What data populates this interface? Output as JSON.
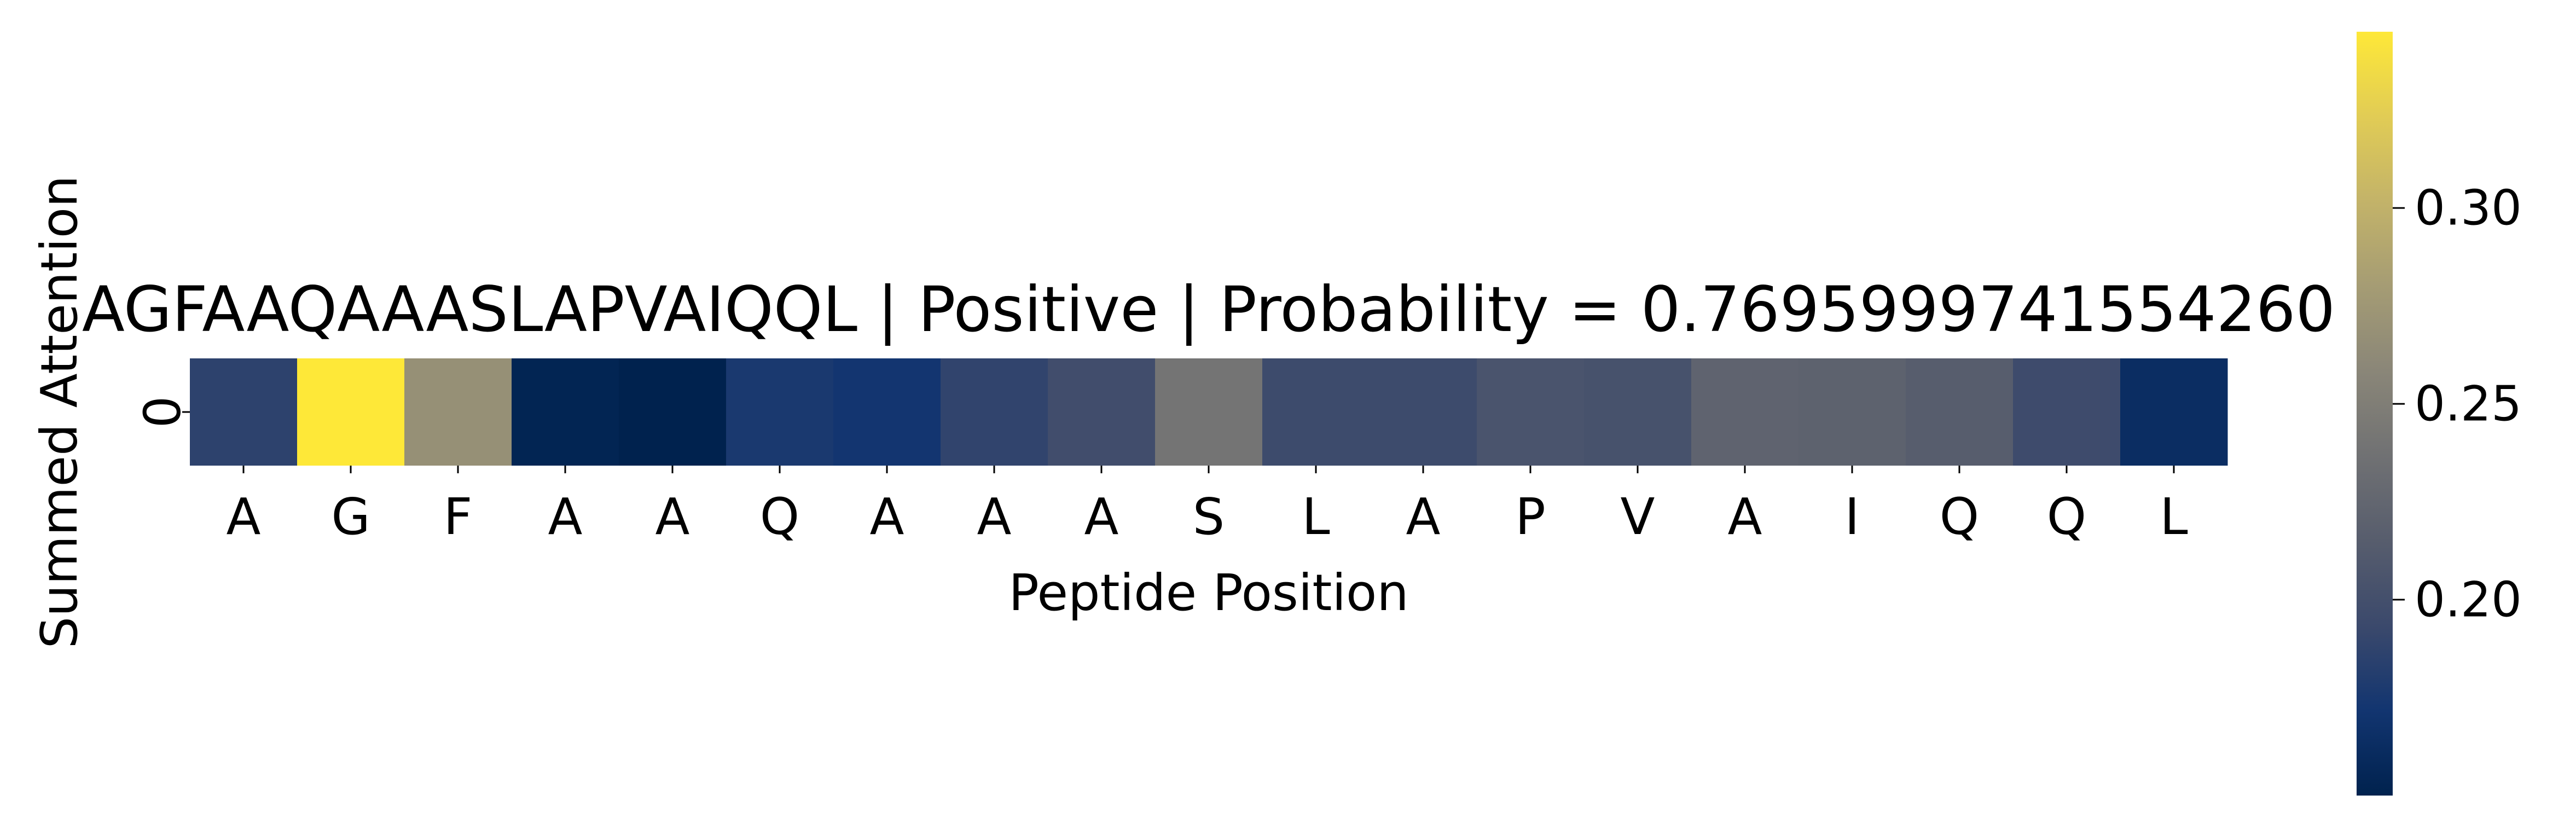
{
  "chart_data": {
    "type": "heatmap",
    "title": "AGFAAQAAASLAPVAIQQL | Positive | Probability = 0.7695999741554260",
    "xlabel": "Peptide Position",
    "ylabel": "Summed Attention",
    "x_ticks": [
      "A",
      "G",
      "F",
      "A",
      "A",
      "Q",
      "A",
      "A",
      "A",
      "S",
      "L",
      "A",
      "P",
      "V",
      "A",
      "I",
      "Q",
      "Q",
      "L"
    ],
    "y_ticks": [
      "0"
    ],
    "values": [
      [
        0.186,
        0.345,
        0.268,
        0.153,
        0.15,
        0.176,
        0.172,
        0.188,
        0.198,
        0.24,
        0.195,
        0.195,
        0.205,
        0.203,
        0.222,
        0.22,
        0.215,
        0.196,
        0.163
      ]
    ],
    "colormap": "cividis",
    "colormap_stops": [
      "#00224e",
      "#123570",
      "#3b496c",
      "#575d6d",
      "#707173",
      "#8a8678",
      "#a59c74",
      "#c3b369",
      "#e1cc55",
      "#fee838"
    ],
    "colorbar": {
      "min": 0.15,
      "max": 0.345,
      "ticks": [
        0.2,
        0.25,
        0.3
      ],
      "tick_labels": [
        "0.20",
        "0.25",
        "0.30"
      ]
    },
    "grid": false,
    "legend": "colorbar-right"
  }
}
